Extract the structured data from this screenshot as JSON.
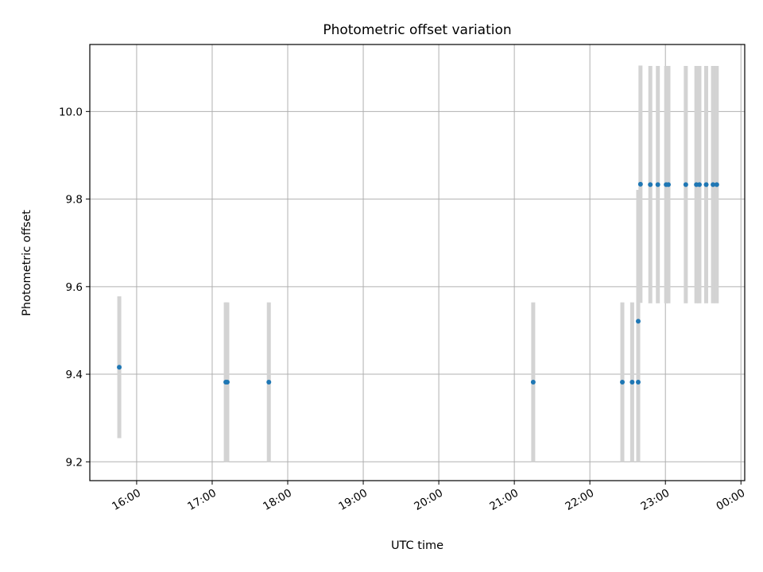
{
  "chart_data": {
    "type": "scatter",
    "title": "Photometric offset variation",
    "xlabel": "UTC time",
    "ylabel": "Photometric offset",
    "x_unit": "hours (UTC, 24 = 00:00 next day)",
    "xlim": [
      15.38,
      24.05
    ],
    "ylim": [
      9.157,
      10.153
    ],
    "xticks": [
      {
        "value": 16,
        "label": "16:00"
      },
      {
        "value": 17,
        "label": "17:00"
      },
      {
        "value": 18,
        "label": "18:00"
      },
      {
        "value": 19,
        "label": "19:00"
      },
      {
        "value": 20,
        "label": "20:00"
      },
      {
        "value": 21,
        "label": "21:00"
      },
      {
        "value": 22,
        "label": "22:00"
      },
      {
        "value": 23,
        "label": "23:00"
      },
      {
        "value": 24,
        "label": "00:00"
      }
    ],
    "yticks": [
      {
        "value": 9.2,
        "label": "9.2"
      },
      {
        "value": 9.4,
        "label": "9.4"
      },
      {
        "value": 9.6,
        "label": "9.6"
      },
      {
        "value": 9.8,
        "label": "9.8"
      },
      {
        "value": 10.0,
        "label": "10.0"
      }
    ],
    "grid": true,
    "colors": {
      "point": "#1f77b4",
      "errorbar": "#d3d3d3",
      "grid": "#b0b0b0"
    },
    "points": [
      {
        "x": 15.77,
        "y": 9.416,
        "err": 0.162
      },
      {
        "x": 17.18,
        "y": 9.382,
        "err": 0.182
      },
      {
        "x": 17.2,
        "y": 9.382,
        "err": 0.182
      },
      {
        "x": 17.75,
        "y": 9.382,
        "err": 0.182
      },
      {
        "x": 21.25,
        "y": 9.382,
        "err": 0.182
      },
      {
        "x": 22.43,
        "y": 9.382,
        "err": 0.182
      },
      {
        "x": 22.56,
        "y": 9.382,
        "err": 0.182
      },
      {
        "x": 22.64,
        "y": 9.382,
        "err": 0.182
      },
      {
        "x": 22.64,
        "y": 9.521,
        "err": 0.3
      },
      {
        "x": 22.67,
        "y": 9.834,
        "err": 0.271
      },
      {
        "x": 22.8,
        "y": 9.833,
        "err": 0.271
      },
      {
        "x": 22.9,
        "y": 9.833,
        "err": 0.271
      },
      {
        "x": 23.01,
        "y": 9.833,
        "err": 0.271
      },
      {
        "x": 23.04,
        "y": 9.833,
        "err": 0.271
      },
      {
        "x": 23.27,
        "y": 9.833,
        "err": 0.271
      },
      {
        "x": 23.41,
        "y": 9.833,
        "err": 0.271
      },
      {
        "x": 23.45,
        "y": 9.833,
        "err": 0.271
      },
      {
        "x": 23.54,
        "y": 9.833,
        "err": 0.271
      },
      {
        "x": 23.63,
        "y": 9.833,
        "err": 0.271
      },
      {
        "x": 23.68,
        "y": 9.833,
        "err": 0.271
      }
    ]
  }
}
